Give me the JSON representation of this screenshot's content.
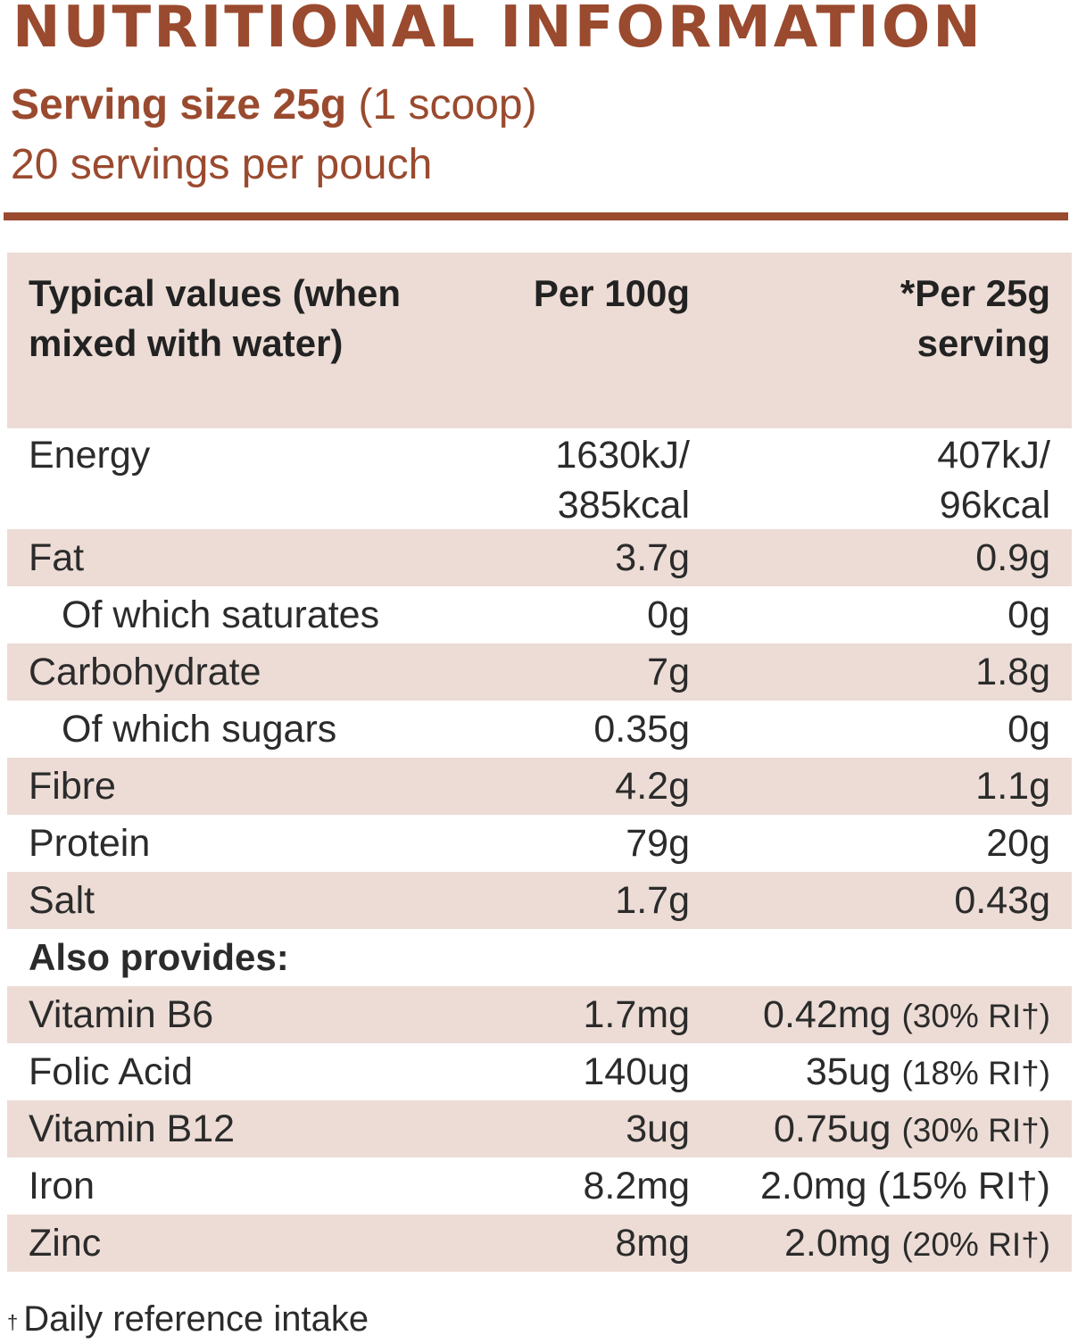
{
  "header": {
    "title": "NUTRITIONAL INFORMATION",
    "serving_size_bold": "Serving size 25g",
    "serving_size_note": " (1 scoop)",
    "servings_per_pack": "20 servings per pouch"
  },
  "table": {
    "columns": [
      "Typical values (when mixed with water)",
      "Per 100g",
      "*Per 25g serving"
    ],
    "energy": {
      "label": "Energy",
      "per100_kj": "1630kJ/",
      "per100_kcal": "385kcal",
      "serving_kj": "407kJ/",
      "serving_kcal": "96kcal"
    },
    "rows": [
      {
        "label": "Fat",
        "per100": "3.7g",
        "serving": "0.9g"
      },
      {
        "label": "Of which saturates",
        "per100": "0g",
        "serving": "0g"
      },
      {
        "label": "Carbohydrate",
        "per100": "7g",
        "serving": "1.8g"
      },
      {
        "label": "Of which sugars",
        "per100": "0.35g",
        "serving": "0g"
      },
      {
        "label": "Fibre",
        "per100": "4.2g",
        "serving": "1.1g"
      },
      {
        "label": "Protein",
        "per100": "79g",
        "serving": "20g"
      },
      {
        "label": "Salt",
        "per100": "1.7g",
        "serving": "0.43g"
      }
    ],
    "also_provides": "Also provides:",
    "vitamins": [
      {
        "label": "Vitamin B6",
        "per100": "1.7mg",
        "serving": "0.42mg",
        "ri": "(30% RI†)"
      },
      {
        "label": "Folic Acid",
        "per100": "140ug",
        "serving": "35ug",
        "ri": "(18% RI†)"
      },
      {
        "label": "Vitamin B12",
        "per100": "3ug",
        "serving": "0.75ug",
        "ri": "(30% RI†)"
      },
      {
        "label": "Iron",
        "per100": "8.2mg",
        "serving": "2.0mg",
        "ri": "(15% RI†)"
      },
      {
        "label": "Zinc",
        "per100": "8mg",
        "serving": "2.0mg",
        "ri": "(20% RI†)"
      }
    ]
  },
  "footnote": {
    "mark": "†",
    "text": "Daily reference intake"
  }
}
